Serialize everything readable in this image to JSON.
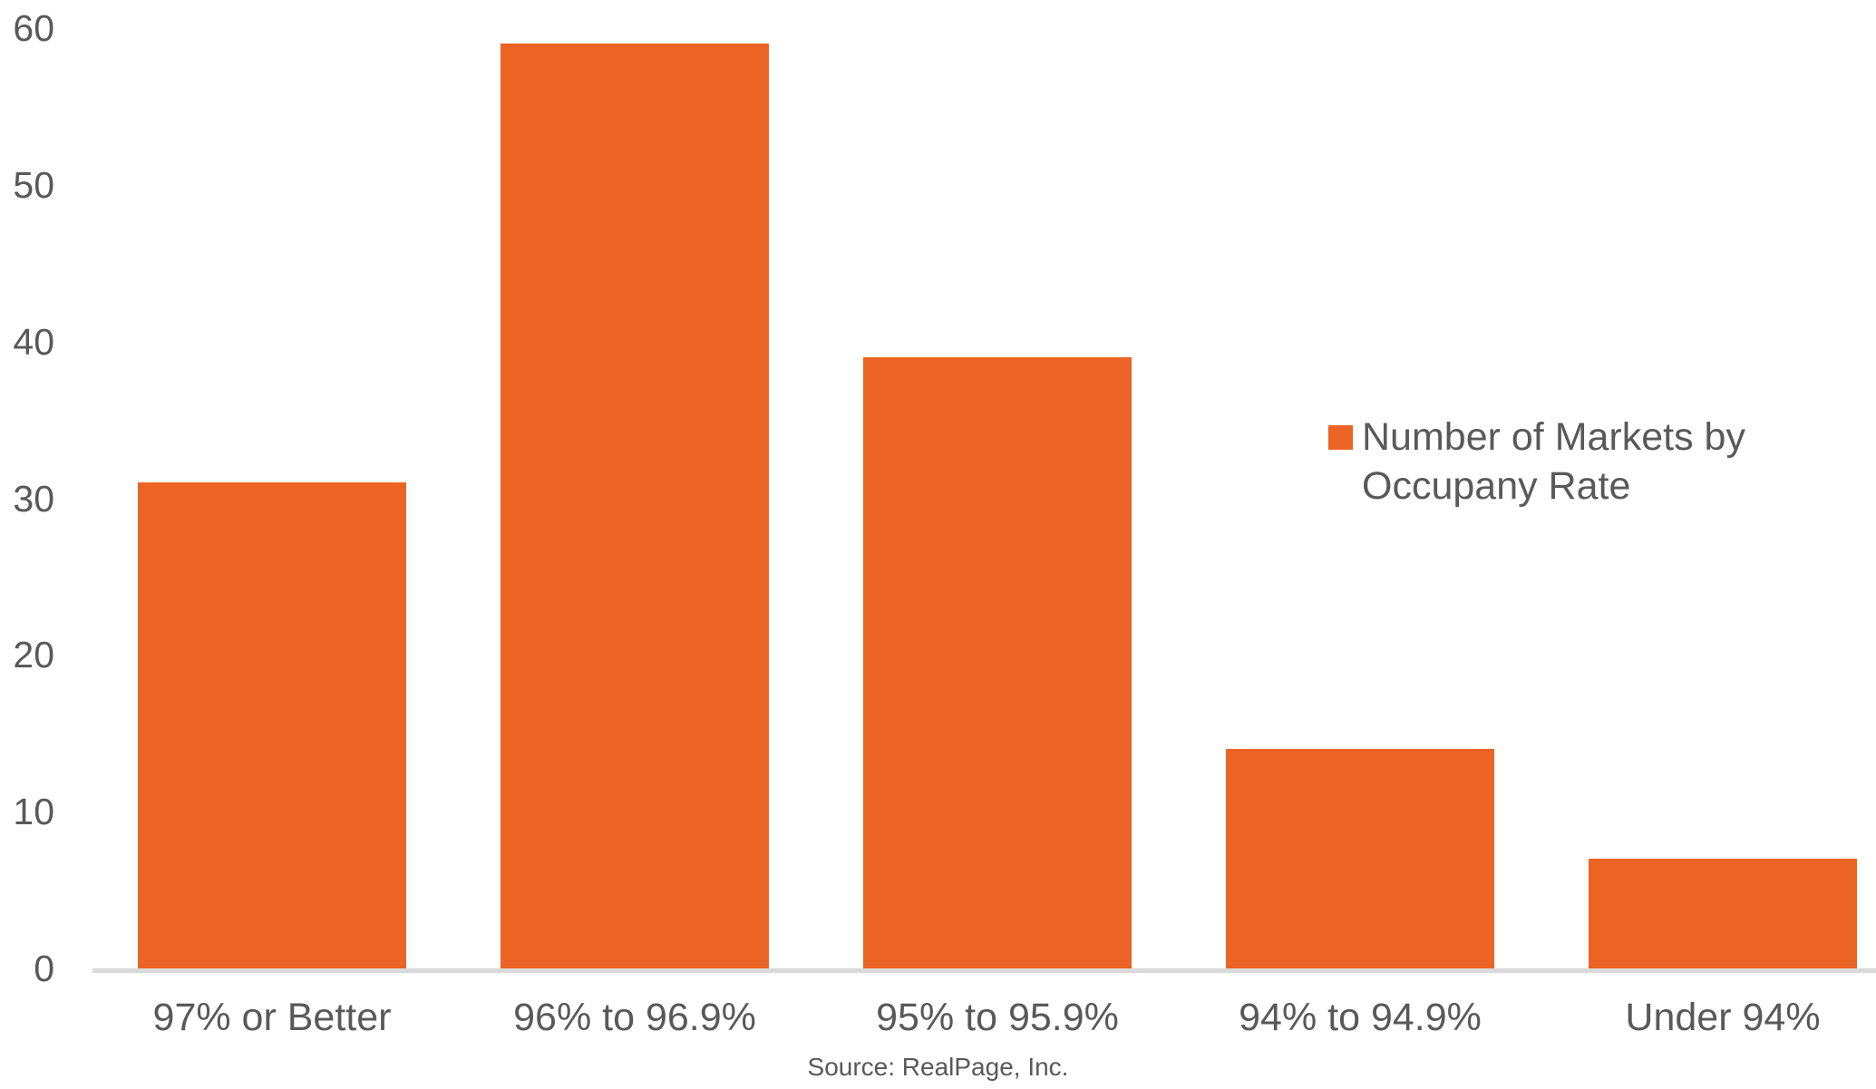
{
  "chart_data": {
    "type": "bar",
    "title": "",
    "xlabel": "",
    "ylabel": "",
    "categories": [
      "97% or Better",
      "96% to 96.9%",
      "95% to 95.9%",
      "94% to 94.9%",
      "Under 94%"
    ],
    "values": [
      31,
      59,
      39,
      14,
      7
    ],
    "series": [
      {
        "name": "Number of Markets by Occupany Rate",
        "values": [
          31,
          59,
          39,
          14,
          7
        ]
      }
    ],
    "ylim": [
      0,
      60
    ],
    "yticks": [
      0,
      10,
      20,
      30,
      40,
      50,
      60
    ],
    "grid": false,
    "legend_position": "middle-right",
    "bar_color": "#EC6425",
    "source_note": "Source: RealPage, Inc."
  },
  "legend": {
    "label": "Number of Markets by Occupany Rate",
    "swatch_color": "#EC6425"
  },
  "footer": {
    "source": "Source: RealPage, Inc."
  },
  "colors": {
    "bar": "#EC6425",
    "text": "#595959",
    "axis_line": "#D9D9D9"
  }
}
